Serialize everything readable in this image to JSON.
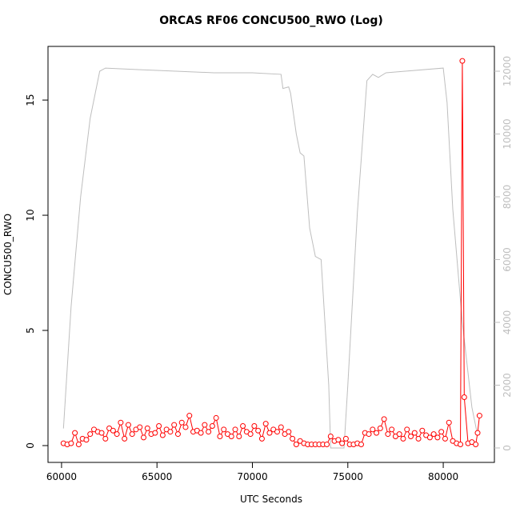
{
  "chart_data": {
    "type": "dual-axis-line",
    "title": "ORCAS RF06 CONCU500_RWO (Log)",
    "x_label": "UTC Seconds",
    "y_label": "CONCU500_RWO",
    "xlim": [
      59290,
      82680
    ],
    "xticks": [
      60000,
      65000,
      70000,
      75000,
      80000
    ],
    "ylim": [
      -0.73,
      17.33
    ],
    "yticks": [
      0,
      5,
      10,
      15
    ],
    "y2lim": [
      -460,
      12790
    ],
    "y2ticks": [
      0,
      2000,
      4000,
      6000,
      8000,
      10000,
      12000
    ],
    "series": [
      {
        "color": "#ff0000",
        "markers": true,
        "x": [
          60100,
          60300,
          60500,
          60700,
          60900,
          61100,
          61300,
          61500,
          61700,
          61900,
          62100,
          62300,
          62500,
          62700,
          62900,
          63100,
          63300,
          63500,
          63700,
          63900,
          64100,
          64300,
          64500,
          64700,
          64900,
          65100,
          65300,
          65500,
          65700,
          65900,
          66100,
          66300,
          66500,
          66700,
          66900,
          67100,
          67300,
          67500,
          67700,
          67900,
          68100,
          68300,
          68500,
          68700,
          68900,
          69100,
          69300,
          69500,
          69700,
          69900,
          70100,
          70300,
          70500,
          70700,
          70900,
          71100,
          71300,
          71500,
          71700,
          71900,
          72100,
          72300,
          72500,
          72700,
          72900,
          73100,
          73300,
          73500,
          73700,
          73900,
          74100,
          74300,
          74500,
          74700,
          74900,
          75100,
          75300,
          75500,
          75700,
          75900,
          76100,
          76300,
          76500,
          76700,
          76900,
          77100,
          77300,
          77500,
          77700,
          77900,
          78100,
          78300,
          78500,
          78700,
          78900,
          79100,
          79300,
          79500,
          79700,
          79900,
          80100,
          80300,
          80500,
          80700,
          80900,
          81000,
          81100,
          81300,
          81500,
          81700,
          81800,
          81900
        ],
        "values": [
          0.1,
          0.05,
          0.1,
          0.55,
          0.05,
          0.3,
          0.25,
          0.5,
          0.7,
          0.6,
          0.55,
          0.3,
          0.75,
          0.65,
          0.5,
          1.0,
          0.3,
          0.9,
          0.5,
          0.7,
          0.8,
          0.35,
          0.75,
          0.5,
          0.55,
          0.85,
          0.45,
          0.7,
          0.6,
          0.9,
          0.5,
          1.0,
          0.8,
          1.3,
          0.6,
          0.65,
          0.55,
          0.9,
          0.6,
          0.85,
          1.2,
          0.4,
          0.7,
          0.5,
          0.4,
          0.7,
          0.4,
          0.85,
          0.6,
          0.5,
          0.85,
          0.65,
          0.3,
          0.95,
          0.55,
          0.7,
          0.6,
          0.8,
          0.5,
          0.6,
          0.3,
          0.05,
          0.2,
          0.1,
          0.05,
          0.05,
          0.05,
          0.05,
          0.05,
          0.05,
          0.4,
          0.2,
          0.25,
          0.1,
          0.3,
          0.05,
          0.05,
          0.1,
          0.05,
          0.55,
          0.5,
          0.7,
          0.55,
          0.75,
          1.15,
          0.5,
          0.7,
          0.4,
          0.5,
          0.3,
          0.7,
          0.4,
          0.55,
          0.3,
          0.65,
          0.45,
          0.35,
          0.5,
          0.35,
          0.6,
          0.3,
          1.0,
          0.2,
          0.1,
          0.05,
          16.7,
          2.1,
          0.1,
          0.15,
          0.05,
          0.55,
          1.3
        ]
      },
      {
        "color": "#bebebe",
        "axis": "y2",
        "markers": false,
        "x": [
          60100,
          60500,
          61000,
          61500,
          62000,
          62300,
          64000,
          66000,
          68000,
          70000,
          71500,
          71600,
          71900,
          72000,
          72300,
          72500,
          72700,
          73000,
          73300,
          73600,
          74000,
          74100,
          74800,
          75000,
          75500,
          76000,
          76300,
          76600,
          77000,
          78000,
          80000,
          80200,
          80500,
          81000,
          81500,
          81800
        ],
        "values": [
          620,
          4500,
          8000,
          10500,
          12000,
          12100,
          12050,
          12000,
          11950,
          11950,
          11900,
          11450,
          11500,
          11300,
          10000,
          9400,
          9300,
          7000,
          6100,
          6000,
          2000,
          0,
          0,
          2000,
          7500,
          11700,
          11900,
          11800,
          11950,
          12000,
          12100,
          11000,
          7600,
          4000,
          1300,
          400
        ]
      }
    ]
  }
}
